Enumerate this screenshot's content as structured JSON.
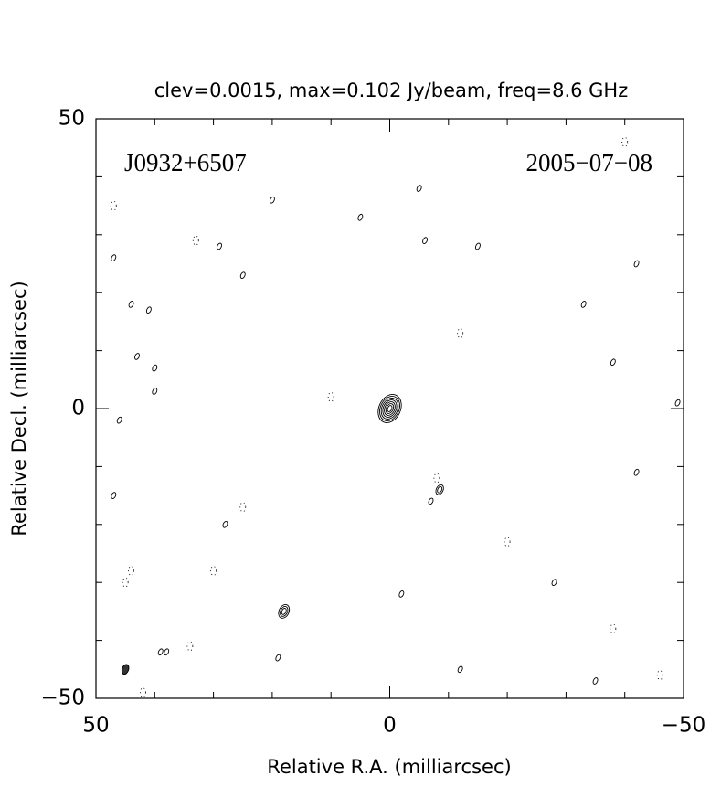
{
  "chart_data": {
    "type": "contour",
    "title": "clev=0.0015, max=0.102 Jy/beam, freq=8.6 GHz",
    "annotations": [
      "J0932+6507",
      "2005−07−08"
    ],
    "xlabel": "Relative R.A. (milliarcsec)",
    "ylabel": "Relative Decl. (milliarcsec)",
    "xlim": [
      50,
      -50
    ],
    "ylim": [
      -50,
      50
    ],
    "xticks": [
      50,
      0,
      {
        "value": -50,
        "label": "−50"
      }
    ],
    "yticks": [
      {
        "value": -50,
        "label": "−50"
      },
      0,
      50
    ],
    "xminor": [
      40,
      30,
      20,
      10,
      -10,
      -20,
      -30,
      -40
    ],
    "yminor": [
      -40,
      -30,
      -20,
      -10,
      10,
      20,
      30,
      40
    ],
    "contours": {
      "x": [
        0,
        -8.5,
        18,
        -5,
        -15,
        5,
        20,
        44,
        43,
        40,
        -38,
        -42,
        -49,
        -42,
        -7,
        -2,
        -28,
        28,
        19,
        40,
        38,
        -35,
        -12,
        29,
        -33,
        47,
        41,
        47,
        46,
        -6,
        25,
        39
      ],
      "y": [
        0,
        -14,
        -35,
        38,
        28,
        33,
        36,
        18,
        9,
        7,
        8,
        25,
        1,
        -11,
        -16,
        -32,
        -30,
        -20,
        -43,
        3,
        -42,
        -47,
        -45,
        28,
        18,
        26,
        17,
        -15,
        -2,
        29,
        23,
        -42
      ],
      "levels": [
        7,
        2,
        3,
        1,
        1,
        1,
        1,
        1,
        1,
        1,
        1,
        1,
        1,
        1,
        1,
        1,
        1,
        1,
        1,
        1,
        1,
        1,
        1,
        1,
        1,
        1,
        1,
        1,
        1,
        1,
        1,
        1
      ]
    },
    "negative_contours": {
      "x": [
        42,
        45,
        33,
        10,
        -8,
        -38,
        -12,
        25,
        30,
        -46,
        34,
        -40,
        44,
        47,
        -20
      ],
      "y": [
        -49,
        -30,
        29,
        2,
        -12,
        -38,
        13,
        -17,
        -28,
        -46,
        -41,
        46,
        -28,
        35,
        -23
      ]
    },
    "beam": {
      "x": 45,
      "y": -45
    }
  }
}
